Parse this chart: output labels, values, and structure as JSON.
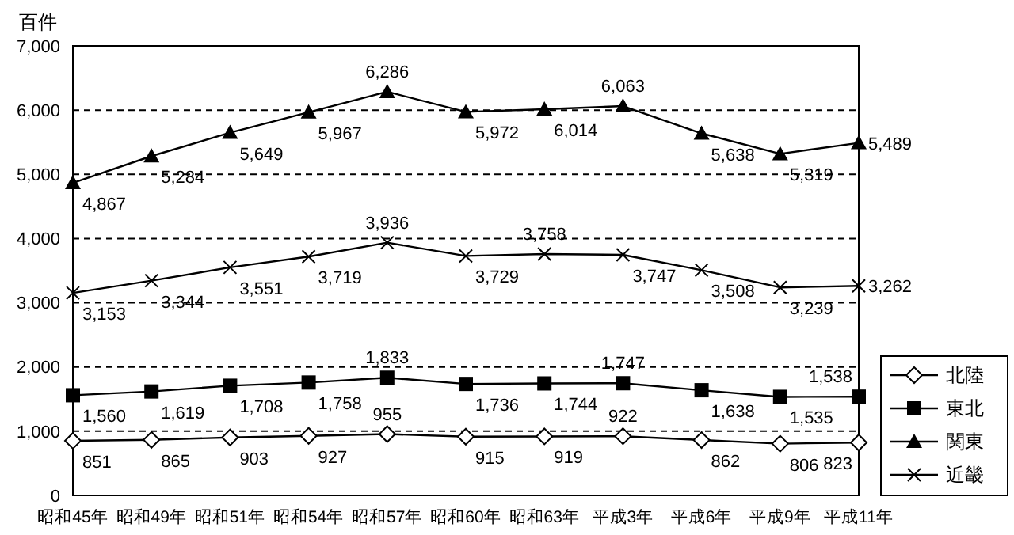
{
  "chart_data": {
    "type": "line",
    "ylabel": "百件",
    "categories": [
      "昭和45年",
      "昭和49年",
      "昭和51年",
      "昭和54年",
      "昭和57年",
      "昭和60年",
      "昭和63年",
      "平成3年",
      "平成6年",
      "平成9年",
      "平成11年"
    ],
    "series": [
      {
        "name": "北陸",
        "color": "#000000",
        "marker": "diamond",
        "values": [
          851,
          865,
          903,
          927,
          955,
          915,
          919,
          922,
          862,
          806,
          823
        ],
        "value_labels": [
          "851",
          "865",
          "903",
          "927",
          "955",
          "915",
          "919",
          "922",
          "862",
          "806",
          "823"
        ]
      },
      {
        "name": "東北",
        "color": "#000000",
        "marker": "square",
        "values": [
          1560,
          1619,
          1708,
          1758,
          1833,
          1736,
          1744,
          1747,
          1638,
          1535,
          1538
        ],
        "value_labels": [
          "1,560",
          "1,619",
          "1,708",
          "1,758",
          "1,833",
          "1,736",
          "1,744",
          "1,747",
          "1,638",
          "1,535",
          "1,538"
        ]
      },
      {
        "name": "関東",
        "color": "#000000",
        "marker": "triangle",
        "values": [
          4867,
          5284,
          5649,
          5967,
          6286,
          5972,
          6014,
          6063,
          5638,
          5319,
          5489
        ],
        "value_labels": [
          "4,867",
          "5,284",
          "5,649",
          "5,967",
          "6,286",
          "5,972",
          "6,014",
          "6,063",
          "5,638",
          "5,319",
          "5,489"
        ]
      },
      {
        "name": "近畿",
        "color": "#000000",
        "marker": "cross",
        "values": [
          3153,
          3344,
          3551,
          3719,
          3936,
          3729,
          3758,
          3747,
          3508,
          3239,
          3262
        ],
        "value_labels": [
          "3,153",
          "3,344",
          "3,551",
          "3,719",
          "3,936",
          "3,729",
          "3,758",
          "3,747",
          "3,508",
          "3,239",
          "3,262"
        ]
      }
    ],
    "ylim": [
      0,
      7000
    ],
    "yticks": [
      {
        "value": 0,
        "label": "0"
      },
      {
        "value": 1000,
        "label": "1,000"
      },
      {
        "value": 2000,
        "label": "2,000"
      },
      {
        "value": 3000,
        "label": "3,000"
      },
      {
        "value": 4000,
        "label": "4,000"
      },
      {
        "value": 5000,
        "label": "5,000"
      },
      {
        "value": 6000,
        "label": "6,000"
      },
      {
        "value": 7000,
        "label": "7,000"
      }
    ],
    "grid": "y",
    "legend": "right",
    "line_style": "solid"
  }
}
